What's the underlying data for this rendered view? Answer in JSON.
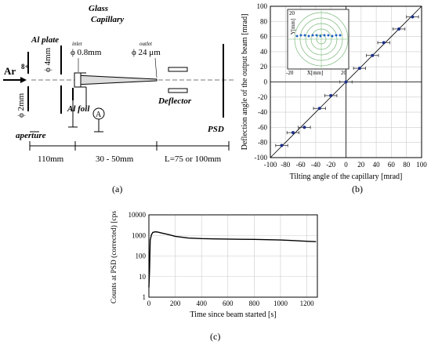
{
  "panel_a": {
    "labels": {
      "ion": "Ar",
      "ion_charge": "8+",
      "al_plate": "Al plate",
      "glass_capillary_1": "Glass",
      "glass_capillary_2": "Capillary",
      "phi_4mm": "ϕ 4mm",
      "inlet": "inlet",
      "phi_08mm": "ϕ 0.8mm",
      "outlet": "outlet",
      "phi_24um": "ϕ 24 μm",
      "phi_2mm": "ϕ 2mm",
      "aperture": "aperture",
      "al_foil": "Al foil",
      "ammeter": "A",
      "deflector": "Deflector",
      "psd": "PSD",
      "dim_110": "110mm",
      "dim_30_50": "30 - 50mm",
      "dim_L": "L=75 or 100mm"
    },
    "caption": "(a)"
  },
  "chart_data": [
    {
      "type": "scatter",
      "panel": "b",
      "xlabel": "Tilting angle of the capillary [mrad]",
      "ylabel": "Deflection angle of the output beam [mrad]",
      "xlim": [
        -100,
        100
      ],
      "ylim": [
        -100,
        100
      ],
      "xticks": [
        -100,
        -80,
        -60,
        -40,
        -20,
        0,
        20,
        40,
        60,
        80,
        100
      ],
      "yticks": [
        -100,
        -80,
        -60,
        -40,
        -20,
        0,
        20,
        40,
        60,
        80,
        100
      ],
      "grid": true,
      "x": [
        -85,
        -70,
        -55,
        -35,
        -20,
        0,
        18,
        35,
        50,
        70,
        88
      ],
      "y": [
        -84,
        -67,
        -60,
        -35,
        -18,
        0,
        18,
        35,
        52,
        70,
        86
      ],
      "xerr": 8,
      "inset": {
        "ylabel": "Y[mm]",
        "xlabel": "X[mm]",
        "xticks": [
          "-20",
          "20"
        ],
        "yticks": [
          "20"
        ]
      },
      "caption": "(b)"
    },
    {
      "type": "line",
      "panel": "c",
      "xlabel": "Time since beam started [s]",
      "ylabel": "Counts at PSD (corrected) [cps]",
      "xlim": [
        0,
        1280
      ],
      "ylim": [
        1,
        10000
      ],
      "yscale": "log",
      "xticks": [
        0,
        200,
        400,
        600,
        800,
        1000,
        1200
      ],
      "yticks": [
        1,
        10,
        100,
        1000,
        10000
      ],
      "ytick_labels": [
        "1",
        "10",
        "100",
        "1000",
        "10000"
      ],
      "grid": true,
      "x": [
        0,
        5,
        10,
        20,
        30,
        50,
        70,
        100,
        150,
        200,
        300,
        400,
        500,
        600,
        700,
        800,
        900,
        1000,
        1100,
        1200,
        1270
      ],
      "y": [
        3,
        20,
        600,
        1100,
        1400,
        1500,
        1450,
        1300,
        1100,
        900,
        750,
        700,
        680,
        660,
        650,
        640,
        620,
        600,
        560,
        520,
        500
      ],
      "caption": "(c)"
    }
  ]
}
